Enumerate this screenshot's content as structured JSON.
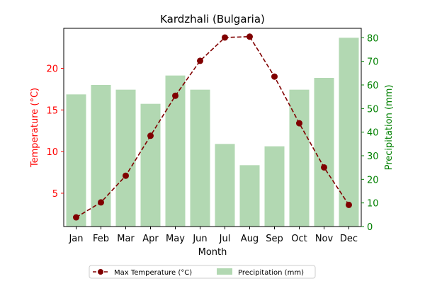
{
  "chart_data": {
    "type": "bar",
    "title": "Kardzhali (Bulgaria)",
    "xlabel": "Month",
    "categories": [
      "Jan",
      "Feb",
      "Mar",
      "Apr",
      "May",
      "Jun",
      "Jul",
      "Aug",
      "Sep",
      "Oct",
      "Nov",
      "Dec"
    ],
    "series": [
      {
        "name": "Max Temperature (°C)",
        "type": "line",
        "axis": "left",
        "color": "#800000",
        "values": [
          2.1,
          3.9,
          7.1,
          11.9,
          16.7,
          20.9,
          23.7,
          23.8,
          19.0,
          13.4,
          8.1,
          3.6
        ]
      },
      {
        "name": "Precipitation (mm)",
        "type": "bar",
        "axis": "right",
        "color": "#b2d8b2",
        "values": [
          56,
          60,
          58,
          52,
          64,
          58,
          35,
          26,
          34,
          58,
          63,
          80
        ]
      }
    ],
    "y_left": {
      "label": "Temperature (°C)",
      "color": "#ff0000",
      "ticks": [
        5,
        10,
        15,
        20
      ],
      "ylim": [
        1.0,
        24.8
      ]
    },
    "y_right": {
      "label": "Precipitation (mm)",
      "color": "#008000",
      "ticks": [
        0,
        10,
        20,
        30,
        40,
        50,
        60,
        70,
        80
      ],
      "ylim": [
        0,
        84
      ]
    },
    "legend": {
      "placement": "bottom-center",
      "entries": [
        "Max Temperature (°C)",
        "Precipitation (mm)"
      ]
    },
    "grid": false
  }
}
